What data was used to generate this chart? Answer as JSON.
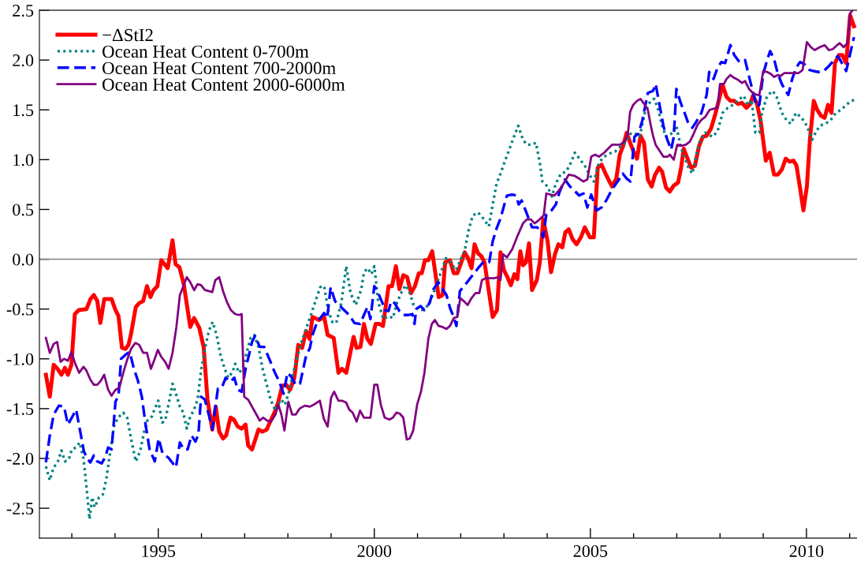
{
  "chart_data": {
    "type": "line",
    "legend": "top left",
    "xlim": [
      1992.25,
      2011.17
    ],
    "ylim": [
      -2.8,
      2.5
    ],
    "xticks": [
      {
        "value": 1993,
        "label": null
      },
      {
        "value": 1994,
        "label": null
      },
      1995,
      {
        "value": 1996,
        "label": null
      },
      {
        "value": 1997,
        "label": null
      },
      {
        "value": 1998,
        "label": null
      },
      {
        "value": 1999,
        "label": null
      },
      2000,
      {
        "value": 2001,
        "label": null
      },
      {
        "value": 2002,
        "label": null
      },
      {
        "value": 2003,
        "label": null
      },
      {
        "value": 2004,
        "label": null
      },
      2005,
      {
        "value": 2006,
        "label": null
      },
      {
        "value": 2007,
        "label": null
      },
      {
        "value": 2008,
        "label": null
      },
      {
        "value": 2009,
        "label": null
      },
      2010,
      {
        "value": 2011,
        "label": null
      }
    ],
    "yticks": [
      {
        "value": -2.5,
        "label": "-2.5"
      },
      {
        "value": -2.0,
        "label": "-2.0"
      },
      {
        "value": -1.5,
        "label": "-1.5"
      },
      {
        "value": -1.0,
        "label": "-1.0"
      },
      {
        "value": -0.5,
        "label": "-0.5"
      },
      {
        "value": 0.0,
        "label": "0.0"
      },
      {
        "value": 0.5,
        "label": "0.5"
      },
      {
        "value": 1.0,
        "label": "1.0"
      },
      {
        "value": 1.5,
        "label": "1.5"
      },
      {
        "value": 2.0,
        "label": "2.0"
      },
      {
        "value": 2.5,
        "label": "2.5"
      }
    ],
    "ref_lines": [
      {
        "axis": "y",
        "value": 0,
        "color": "#808080"
      }
    ],
    "series": [
      {
        "name": "−ΔStI2",
        "color": "#ff0000",
        "line_style": "solid",
        "x": [
          1992.4,
          1992.49,
          1992.58,
          1992.67,
          1992.76,
          1992.84,
          1992.91,
          1992.99,
          1993.07,
          1993.16,
          1993.34,
          1993.43,
          1993.51,
          1993.59,
          1993.66,
          1993.75,
          1993.92,
          1994.01,
          1994.08,
          1994.16,
          1994.24,
          1994.31,
          1994.37,
          1994.48,
          1994.56,
          1994.65,
          1994.74,
          1994.82,
          1994.89,
          1994.98,
          1995.07,
          1995.22,
          1995.33,
          1995.4,
          1995.49,
          1995.59,
          1995.74,
          1995.83,
          1995.95,
          1996.05,
          1996.14,
          1996.25,
          1996.33,
          1996.41,
          1996.5,
          1996.57,
          1996.67,
          1996.75,
          1996.84,
          1996.93,
          1997.02,
          1997.08,
          1997.17,
          1997.32,
          1997.41,
          1997.51,
          1997.6,
          1997.69,
          1997.78,
          1997.87,
          1997.96,
          1998.05,
          1998.15,
          1998.24,
          1998.33,
          1998.42,
          1998.5,
          1998.57,
          1998.72,
          1998.84,
          1998.92,
          1999.06,
          1999.17,
          1999.25,
          1999.35,
          1999.52,
          1999.59,
          1999.68,
          1999.76,
          1999.84,
          1999.92,
          2000.03,
          2000.12,
          2000.2,
          2000.33,
          2000.41,
          2000.5,
          2000.58,
          2000.67,
          2000.76,
          2000.85,
          2000.94,
          2001.03,
          2001.1,
          2001.17,
          2001.25,
          2001.34,
          2001.49,
          2001.58,
          2001.64,
          2001.75,
          2001.84,
          2001.92,
          2001.99,
          2002.09,
          2002.17,
          2002.25,
          2002.32,
          2002.4,
          2002.48,
          2002.55,
          2002.74,
          2002.84,
          2002.92,
          2003.0,
          2003.07,
          2003.16,
          2003.24,
          2003.31,
          2003.38,
          2003.44,
          2003.51,
          2003.58,
          2003.65,
          2003.76,
          2003.83,
          2003.91,
          2004.01,
          2004.09,
          2004.18,
          2004.26,
          2004.35,
          2004.42,
          2004.5,
          2004.59,
          2004.68,
          2004.78,
          2004.87,
          2004.99,
          2005.08,
          2005.17,
          2005.26,
          2005.35,
          2005.5,
          2005.6,
          2005.68,
          2005.76,
          2005.84,
          2005.92,
          2005.99,
          2006.08,
          2006.16,
          2006.24,
          2006.33,
          2006.42,
          2006.49,
          2006.59,
          2006.66,
          2006.75,
          2006.84,
          2006.93,
          2007.03,
          2007.1,
          2007.16,
          2007.24,
          2007.33,
          2007.42,
          2007.51,
          2007.6,
          2007.69,
          2007.79,
          2007.88,
          2007.97,
          2008.06,
          2008.15,
          2008.24,
          2008.33,
          2008.42,
          2008.51,
          2008.61,
          2008.7,
          2008.76,
          2008.85,
          2008.94,
          2009.06,
          2009.15,
          2009.25,
          2009.34,
          2009.43,
          2009.52,
          2009.61,
          2009.7,
          2009.77,
          2009.85,
          2009.93,
          2010.01,
          2010.08,
          2010.17,
          2010.25,
          2010.34,
          2010.42,
          2010.5,
          2010.58,
          2010.66,
          2010.75,
          2010.83,
          2010.92,
          2011.01,
          2011.1
        ],
        "values": [
          -1.16,
          -1.38,
          -1.06,
          -1.1,
          -1.16,
          -1.09,
          -1.16,
          -1.06,
          -0.55,
          -0.51,
          -0.5,
          -0.4,
          -0.36,
          -0.42,
          -0.64,
          -0.4,
          -0.4,
          -0.51,
          -0.57,
          -0.89,
          -0.9,
          -0.86,
          -0.75,
          -0.48,
          -0.44,
          -0.42,
          -0.27,
          -0.38,
          -0.31,
          -0.27,
          -0.01,
          -0.09,
          0.19,
          -0.05,
          -0.08,
          -0.25,
          -0.68,
          -0.59,
          -0.69,
          -0.88,
          -1.41,
          -1.71,
          -1.48,
          -1.73,
          -1.8,
          -1.77,
          -1.59,
          -1.61,
          -1.68,
          -1.7,
          -1.66,
          -1.87,
          -1.91,
          -1.71,
          -1.73,
          -1.71,
          -1.62,
          -1.54,
          -1.43,
          -1.27,
          -1.26,
          -1.31,
          -1.19,
          -0.86,
          -0.89,
          -0.72,
          -0.8,
          -0.58,
          -0.61,
          -0.58,
          -0.76,
          -0.79,
          -1.14,
          -1.1,
          -1.14,
          -0.78,
          -0.89,
          -0.88,
          -0.65,
          -0.8,
          -0.85,
          -0.65,
          -0.65,
          -0.67,
          -0.27,
          -0.27,
          -0.07,
          -0.3,
          -0.16,
          -0.18,
          -0.34,
          -0.27,
          -0.14,
          -0.14,
          -0.01,
          -0.01,
          0.08,
          -0.38,
          -0.36,
          -0.03,
          -0.01,
          -0.14,
          -0.14,
          -0.06,
          0.07,
          0.01,
          -0.09,
          0.15,
          0.06,
          0.03,
          -0.03,
          -0.58,
          -0.51,
          0.07,
          -0.11,
          -0.17,
          -0.26,
          -0.15,
          -0.2,
          0.08,
          -0.06,
          -0.03,
          0.16,
          -0.31,
          -0.21,
          -0.03,
          0.4,
          0.18,
          -0.13,
          0.05,
          0.15,
          0.12,
          0.27,
          0.3,
          0.2,
          0.15,
          0.22,
          0.32,
          0.22,
          0.22,
          0.92,
          0.95,
          0.86,
          0.73,
          0.81,
          1.05,
          1.14,
          1.27,
          1.17,
          1.09,
          1.01,
          1.24,
          1.17,
          0.8,
          0.73,
          0.84,
          0.92,
          0.88,
          0.72,
          0.68,
          0.74,
          0.77,
          0.92,
          1.11,
          1.02,
          0.92,
          0.94,
          1.13,
          1.23,
          1.24,
          1.31,
          1.44,
          1.59,
          1.75,
          1.63,
          1.59,
          1.59,
          1.56,
          1.57,
          1.52,
          1.56,
          1.64,
          1.57,
          1.39,
          0.99,
          1.07,
          0.85,
          0.85,
          0.9,
          1.01,
          0.98,
          0.99,
          0.94,
          0.72,
          0.49,
          0.73,
          1.2,
          1.59,
          1.5,
          1.44,
          1.42,
          1.55,
          1.47,
          1.97,
          2.05,
          2.05,
          1.97,
          2.45,
          2.34
        ]
      },
      {
        "name": "Ocean Heat Content 0-700m",
        "color": "#008080",
        "line_style": "dotted",
        "x": [
          1992.4,
          1992.49,
          1992.58,
          1992.67,
          1992.76,
          1992.84,
          1992.93,
          1993.0,
          1993.1,
          1993.18,
          1993.27,
          1993.34,
          1993.41,
          1993.47,
          1993.53,
          1993.63,
          1993.72,
          1993.8,
          1993.89,
          1993.98,
          1994.07,
          1994.19,
          1994.28,
          1994.37,
          1994.48,
          1994.58,
          1994.68,
          1994.75,
          1994.85,
          1994.92,
          1995.0,
          1995.09,
          1995.16,
          1995.26,
          1995.33,
          1995.41,
          1995.5,
          1995.58,
          1995.66,
          1995.74,
          1995.82,
          1995.91,
          1996.0,
          1996.09,
          1996.17,
          1996.26,
          1996.35,
          1996.44,
          1996.53,
          1996.62,
          1996.72,
          1996.78,
          1996.87,
          1996.96,
          1997.05,
          1997.14,
          1997.22,
          1997.32,
          1997.41,
          1997.51,
          1997.6,
          1997.71,
          1997.77,
          1997.85,
          1997.93,
          1998.02,
          1998.11,
          1998.2,
          1998.3,
          1998.42,
          1998.54,
          1998.63,
          1998.75,
          1998.84,
          1998.93,
          1999.03,
          1999.12,
          1999.24,
          1999.35,
          1999.45,
          1999.57,
          1999.7,
          1999.76,
          1999.85,
          1999.93,
          2000.0,
          2000.09,
          2000.21,
          2000.33,
          2000.43,
          2000.53,
          2000.64,
          2000.73,
          2000.82,
          2000.91,
          2001.0,
          2001.12,
          2001.25,
          2001.37,
          2001.49,
          2001.66,
          2001.76,
          2001.89,
          2002.01,
          2002.09,
          2002.19,
          2002.28,
          2002.4,
          2002.52,
          2002.65,
          2002.74,
          2002.83,
          2002.92,
          2003.01,
          2003.13,
          2003.24,
          2003.33,
          2003.44,
          2003.53,
          2003.65,
          2003.74,
          2003.83,
          2003.89,
          2004.01,
          2004.11,
          2004.2,
          2004.32,
          2004.44,
          2004.55,
          2004.64,
          2004.78,
          2004.9,
          2004.96,
          2005.08,
          2005.2,
          2005.32,
          2005.44,
          2005.57,
          2005.69,
          2005.81,
          2005.93,
          2006.02,
          2006.14,
          2006.26,
          2006.39,
          2006.48,
          2006.57,
          2006.66,
          2006.75,
          2006.87,
          2006.99,
          2007.09,
          2007.18,
          2007.27,
          2007.36,
          2007.45,
          2007.54,
          2007.66,
          2007.82,
          2007.94,
          2008.06,
          2008.18,
          2008.3,
          2008.42,
          2008.55,
          2008.64,
          2008.73,
          2008.82,
          2008.91,
          2008.97,
          2009.09,
          2009.22,
          2009.31,
          2009.43,
          2009.55,
          2009.64,
          2009.76,
          2009.89,
          2010.01,
          2010.13,
          2010.22,
          2010.31,
          2010.43,
          2010.55,
          2010.68,
          2010.8,
          2010.92,
          2011.04,
          2011.13
        ],
        "values": [
          -2.08,
          -2.22,
          -2.09,
          -2.04,
          -1.92,
          -2.03,
          -2.01,
          -1.91,
          -1.89,
          -1.84,
          -2.0,
          -2.29,
          -2.61,
          -2.39,
          -2.49,
          -2.39,
          -2.36,
          -2.2,
          -1.93,
          -1.67,
          -1.59,
          -1.54,
          -1.59,
          -1.8,
          -2.03,
          -1.93,
          -1.72,
          -1.62,
          -1.58,
          -1.5,
          -1.42,
          -1.64,
          -1.62,
          -1.41,
          -1.25,
          -1.35,
          -1.48,
          -1.54,
          -1.7,
          -1.58,
          -1.52,
          -1.41,
          -1.09,
          -0.88,
          -0.72,
          -0.63,
          -0.76,
          -0.96,
          -1.09,
          -1.19,
          -1.13,
          -1.05,
          -1.14,
          -1.09,
          -0.93,
          -0.79,
          -0.76,
          -0.88,
          -1.09,
          -1.26,
          -1.41,
          -1.52,
          -1.46,
          -1.41,
          -1.46,
          -1.34,
          -1.17,
          -1.01,
          -0.85,
          -0.7,
          -0.55,
          -0.43,
          -0.28,
          -0.27,
          -0.51,
          -0.63,
          -0.64,
          -0.43,
          -0.07,
          -0.34,
          -0.46,
          -0.3,
          -0.13,
          -0.09,
          -0.15,
          -0.07,
          -0.43,
          -0.6,
          -0.57,
          -0.59,
          -0.43,
          -0.32,
          -0.26,
          -0.34,
          -0.46,
          -0.5,
          -0.51,
          -0.46,
          -0.34,
          -0.19,
          0.01,
          -0.03,
          -0.11,
          0.01,
          0.08,
          0.31,
          0.44,
          0.47,
          0.41,
          0.33,
          0.55,
          0.76,
          0.86,
          0.97,
          1.11,
          1.24,
          1.34,
          1.2,
          1.15,
          1.15,
          1.17,
          0.97,
          0.78,
          0.73,
          0.63,
          0.76,
          0.86,
          0.88,
          0.97,
          1.07,
          0.99,
          0.92,
          0.86,
          0.78,
          0.97,
          1.03,
          1.06,
          1.08,
          1.13,
          1.17,
          1.26,
          1.27,
          1.23,
          1.47,
          1.59,
          1.61,
          1.5,
          1.34,
          1.23,
          1.26,
          1.34,
          1.13,
          1.02,
          0.92,
          0.86,
          1.05,
          1.2,
          1.27,
          1.23,
          1.28,
          1.47,
          1.52,
          1.55,
          1.6,
          1.64,
          1.55,
          1.6,
          1.27,
          1.27,
          1.47,
          1.64,
          1.69,
          1.63,
          1.47,
          1.39,
          1.36,
          1.47,
          1.42,
          1.34,
          1.2,
          1.28,
          1.34,
          1.36,
          1.39,
          1.47,
          1.5,
          1.55,
          1.59,
          1.6
        ]
      },
      {
        "name": "Ocean Heat Content 700-2000m",
        "color": "#0000ff",
        "line_style": "dashed",
        "x": [
          1992.4,
          1992.49,
          1992.58,
          1992.7,
          1992.82,
          1992.91,
          1993.0,
          1993.1,
          1993.19,
          1993.28,
          1993.37,
          1993.43,
          1993.51,
          1993.59,
          1993.69,
          1993.77,
          1993.84,
          1993.92,
          1994.01,
          1994.08,
          1994.14,
          1994.24,
          1994.34,
          1994.43,
          1994.53,
          1994.62,
          1994.71,
          1994.8,
          1994.92,
          1995.01,
          1995.1,
          1995.23,
          1995.32,
          1995.41,
          1995.5,
          1995.59,
          1995.68,
          1995.77,
          1995.86,
          1995.93,
          1995.99,
          1996.08,
          1996.17,
          1996.25,
          1996.33,
          1996.38,
          1996.47,
          1996.56,
          1996.67,
          1996.76,
          1996.84,
          1996.93,
          1997.02,
          1997.1,
          1997.17,
          1997.24,
          1997.35,
          1997.45,
          1997.57,
          1997.69,
          1997.79,
          1997.9,
          1997.99,
          1998.08,
          1998.18,
          1998.28,
          1998.36,
          1998.42,
          1998.51,
          1998.57,
          1998.66,
          1998.75,
          1998.84,
          1998.91,
          1998.99,
          1999.09,
          1999.18,
          1999.3,
          1999.42,
          1999.54,
          1999.67,
          1999.76,
          1999.84,
          1999.91,
          2000.0,
          2000.09,
          2000.18,
          2000.24,
          2000.33,
          2000.39,
          2000.47,
          2000.58,
          2000.67,
          2000.79,
          2000.88,
          2000.93,
          2000.97,
          2001.07,
          2001.16,
          2001.28,
          2001.37,
          2001.48,
          2001.58,
          2001.67,
          2001.76,
          2001.84,
          2001.9,
          2001.98,
          2002.1,
          2002.22,
          2002.31,
          2002.4,
          2002.52,
          2002.66,
          2002.74,
          2002.83,
          2002.92,
          2003.01,
          2003.07,
          2003.19,
          2003.28,
          2003.34,
          2003.41,
          2003.5,
          2003.59,
          2003.65,
          2003.77,
          2003.86,
          2003.91,
          2003.98,
          2004.1,
          2004.2,
          2004.29,
          2004.41,
          2004.53,
          2004.65,
          2004.74,
          2004.84,
          2004.93,
          2005.02,
          2005.14,
          2005.26,
          2005.38,
          2005.5,
          2005.63,
          2005.75,
          2005.84,
          2005.93,
          2006.02,
          2006.11,
          2006.2,
          2006.33,
          2006.45,
          2006.51,
          2006.6,
          2006.69,
          2006.78,
          2006.87,
          2006.93,
          2006.99,
          2007.09,
          2007.18,
          2007.27,
          2007.36,
          2007.45,
          2007.57,
          2007.69,
          2007.75,
          2007.85,
          2007.94,
          2008.03,
          2008.12,
          2008.24,
          2008.33,
          2008.45,
          2008.58,
          2008.67,
          2008.76,
          2008.85,
          2008.91,
          2009.0,
          2009.09,
          2009.16,
          2009.25,
          2009.34,
          2009.43,
          2009.52,
          2009.58,
          2009.67,
          2009.76,
          2009.85,
          2009.95,
          2010.07,
          2010.16,
          2010.28,
          2010.4,
          2010.52,
          2010.64,
          2010.73,
          2010.86,
          2010.92,
          2011.01,
          2011.1
        ],
        "values": [
          -2.04,
          -1.77,
          -1.56,
          -1.47,
          -1.48,
          -1.66,
          -1.59,
          -1.51,
          -1.72,
          -1.93,
          -2.01,
          -2.04,
          -1.97,
          -2.03,
          -2.05,
          -1.99,
          -1.89,
          -1.91,
          -1.43,
          -1.37,
          -1.0,
          -0.96,
          -0.93,
          -1.09,
          -1.22,
          -1.38,
          -1.67,
          -1.91,
          -2.03,
          -1.8,
          -1.95,
          -1.99,
          -2.04,
          -2.09,
          -1.84,
          -1.91,
          -1.91,
          -1.77,
          -1.83,
          -1.76,
          -1.38,
          -1.41,
          -1.56,
          -1.71,
          -1.46,
          -1.3,
          -1.29,
          -1.19,
          -1.23,
          -1.19,
          -1.31,
          -1.33,
          -1.1,
          -0.96,
          -0.83,
          -0.77,
          -0.88,
          -0.88,
          -1.0,
          -1.13,
          -1.22,
          -1.35,
          -1.14,
          -1.18,
          -1.26,
          -1.25,
          -1.09,
          -0.97,
          -0.89,
          -0.76,
          -0.65,
          -0.59,
          -0.54,
          -0.59,
          -0.28,
          -0.42,
          -0.46,
          -0.51,
          -0.56,
          -0.64,
          -0.65,
          -0.56,
          -0.48,
          -0.6,
          -0.27,
          -0.34,
          -0.43,
          -0.51,
          -0.52,
          -0.42,
          -0.44,
          -0.52,
          -0.56,
          -0.56,
          -0.55,
          -0.65,
          -0.5,
          -0.47,
          -0.51,
          -0.44,
          -0.3,
          -0.23,
          -0.3,
          -0.36,
          -0.5,
          -0.58,
          -0.67,
          -0.32,
          -0.26,
          -0.19,
          -0.14,
          -0.09,
          -0.03,
          -0.03,
          0.18,
          0.31,
          0.41,
          0.55,
          0.64,
          0.65,
          0.64,
          0.55,
          0.59,
          0.49,
          0.39,
          0.32,
          0.32,
          0.28,
          0.22,
          0.45,
          0.49,
          0.55,
          0.68,
          0.8,
          0.73,
          0.68,
          0.64,
          0.66,
          0.52,
          0.65,
          0.49,
          0.52,
          0.6,
          0.7,
          0.78,
          0.86,
          0.81,
          0.78,
          1.23,
          1.26,
          1.39,
          1.67,
          1.69,
          1.76,
          1.55,
          1.34,
          1.2,
          1.1,
          1.23,
          1.71,
          1.57,
          1.47,
          1.36,
          1.32,
          1.38,
          1.47,
          1.65,
          1.88,
          1.81,
          1.92,
          1.98,
          1.97,
          2.15,
          2.05,
          1.98,
          2.0,
          1.84,
          1.68,
          1.53,
          1.55,
          1.86,
          2.0,
          2.09,
          2.01,
          1.86,
          1.76,
          1.69,
          1.65,
          1.81,
          1.92,
          1.98,
          1.96,
          1.9,
          1.89,
          1.88,
          1.89,
          1.94,
          2.0,
          2.04,
          1.94,
          1.89,
          2.06,
          2.23
        ]
      },
      {
        "name": "Ocean Heat Content 2000-6000m",
        "color": "#800080",
        "line_style": "solid",
        "x": [
          1992.4,
          1992.49,
          1992.58,
          1992.66,
          1992.74,
          1992.82,
          1992.91,
          1992.99,
          1993.08,
          1993.17,
          1993.27,
          1993.34,
          1993.43,
          1993.51,
          1993.59,
          1993.67,
          1993.75,
          1993.84,
          1993.92,
          1994.01,
          1994.1,
          1994.19,
          1994.28,
          1994.37,
          1994.47,
          1994.56,
          1994.65,
          1994.74,
          1994.83,
          1994.91,
          1994.99,
          1995.07,
          1995.16,
          1995.24,
          1995.33,
          1995.42,
          1995.5,
          1995.59,
          1995.66,
          1995.74,
          1995.83,
          1995.91,
          1995.99,
          1996.08,
          1996.17,
          1996.25,
          1996.32,
          1996.41,
          1996.5,
          1996.59,
          1996.68,
          1996.78,
          1996.87,
          1996.93,
          1996.99,
          1997.08,
          1997.17,
          1997.26,
          1997.35,
          1997.43,
          1997.52,
          1997.61,
          1997.71,
          1997.78,
          1997.85,
          1997.92,
          1998.01,
          1998.1,
          1998.18,
          1998.27,
          1998.39,
          1998.51,
          1998.6,
          1998.74,
          1998.83,
          1998.92,
          1999.0,
          1999.07,
          1999.17,
          1999.25,
          1999.35,
          1999.42,
          1999.5,
          1999.59,
          1999.67,
          1999.76,
          1999.91,
          2000.0,
          2000.07,
          2000.15,
          2000.24,
          2000.35,
          2000.43,
          2000.51,
          2000.59,
          2000.67,
          2000.75,
          2000.82,
          2000.9,
          2000.99,
          2001.08,
          2001.16,
          2001.25,
          2001.33,
          2001.4,
          2001.49,
          2001.58,
          2001.67,
          2001.75,
          2001.84,
          2001.92,
          2001.99,
          2002.07,
          2002.16,
          2002.25,
          2002.34,
          2002.43,
          2002.49,
          2002.58,
          2002.77,
          2002.86,
          2002.92,
          2002.98,
          2003.07,
          2003.19,
          2003.31,
          2003.44,
          2003.53,
          2003.62,
          2003.71,
          2003.8,
          2003.92,
          2003.98,
          2004.07,
          2004.17,
          2004.29,
          2004.41,
          2004.5,
          2004.62,
          2004.74,
          2004.84,
          2004.93,
          2005.02,
          2005.11,
          2005.2,
          2005.32,
          2005.5,
          2005.69,
          2005.81,
          2005.87,
          2005.92,
          2005.99,
          2006.08,
          2006.16,
          2006.26,
          2006.33,
          2006.39,
          2006.45,
          2006.51,
          2006.6,
          2006.69,
          2006.78,
          2006.84,
          2006.93,
          2007.01,
          2007.12,
          2007.21,
          2007.3,
          2007.39,
          2007.48,
          2007.57,
          2007.66,
          2007.76,
          2007.85,
          2007.94,
          2008.0,
          2008.09,
          2008.15,
          2008.24,
          2008.33,
          2008.42,
          2008.51,
          2008.58,
          2008.67,
          2008.76,
          2008.85,
          2008.91,
          2009.0,
          2009.09,
          2009.18,
          2009.25,
          2009.34,
          2009.4,
          2009.49,
          2009.58,
          2009.7,
          2009.82,
          2009.91,
          2010.01,
          2010.1,
          2010.19,
          2010.31,
          2010.42,
          2010.52,
          2010.61,
          2010.71,
          2010.77,
          2010.86,
          2010.95,
          2011.01,
          2011.07
        ],
        "values": [
          -0.79,
          -0.94,
          -0.85,
          -0.83,
          -1.03,
          -1.0,
          -1.02,
          -0.93,
          -1.05,
          -1.14,
          -1.08,
          -1.12,
          -1.21,
          -1.26,
          -1.26,
          -1.22,
          -1.16,
          -1.31,
          -1.37,
          -1.31,
          -1.29,
          -1.14,
          -1.01,
          -0.9,
          -0.84,
          -0.86,
          -0.94,
          -0.94,
          -1.1,
          -1.01,
          -0.91,
          -0.98,
          -1.03,
          -1.1,
          -0.94,
          -0.68,
          -0.36,
          -0.26,
          -0.18,
          -0.23,
          -0.31,
          -0.25,
          -0.26,
          -0.31,
          -0.32,
          -0.33,
          -0.21,
          -0.18,
          -0.32,
          -0.43,
          -0.51,
          -0.55,
          -0.56,
          -0.55,
          -1.38,
          -1.41,
          -1.48,
          -1.55,
          -1.62,
          -1.59,
          -1.62,
          -1.63,
          -1.56,
          -1.46,
          -1.56,
          -1.72,
          -1.43,
          -1.56,
          -1.56,
          -1.5,
          -1.47,
          -1.48,
          -1.46,
          -1.42,
          -1.6,
          -1.68,
          -1.39,
          -1.33,
          -1.42,
          -1.42,
          -1.44,
          -1.51,
          -1.54,
          -1.63,
          -1.52,
          -1.59,
          -1.59,
          -1.26,
          -1.26,
          -1.46,
          -1.59,
          -1.61,
          -1.59,
          -1.54,
          -1.55,
          -1.59,
          -1.81,
          -1.8,
          -1.72,
          -1.46,
          -1.33,
          -1.14,
          -0.8,
          -0.65,
          -0.61,
          -0.67,
          -0.68,
          -0.7,
          -0.67,
          -0.59,
          -0.58,
          -0.39,
          -0.42,
          -0.46,
          -0.39,
          -0.34,
          -0.34,
          -0.21,
          -0.19,
          -0.19,
          -0.18,
          -0.21,
          0.05,
          0.02,
          0.1,
          0.23,
          0.36,
          0.4,
          0.4,
          0.36,
          0.39,
          0.44,
          0.66,
          0.65,
          0.64,
          0.7,
          0.78,
          0.85,
          0.84,
          0.81,
          0.78,
          0.8,
          1.03,
          1.05,
          1.03,
          1.07,
          1.15,
          1.15,
          1.19,
          1.27,
          1.48,
          1.55,
          1.59,
          1.61,
          1.55,
          1.5,
          1.36,
          1.24,
          1.15,
          1.09,
          1.03,
          1.03,
          1.05,
          1.0,
          1.15,
          1.14,
          1.15,
          1.18,
          1.26,
          1.35,
          1.4,
          1.43,
          1.5,
          1.51,
          1.52,
          1.76,
          1.76,
          1.81,
          1.85,
          1.82,
          1.8,
          1.77,
          1.79,
          1.71,
          1.67,
          1.65,
          1.65,
          1.89,
          1.88,
          1.86,
          1.83,
          1.85,
          1.84,
          1.87,
          1.87,
          1.87,
          1.87,
          1.9,
          2.18,
          2.13,
          2.1,
          2.13,
          2.15,
          2.1,
          2.11,
          2.15,
          2.17,
          2.13,
          2.17,
          2.47,
          2.5
        ]
      }
    ]
  }
}
